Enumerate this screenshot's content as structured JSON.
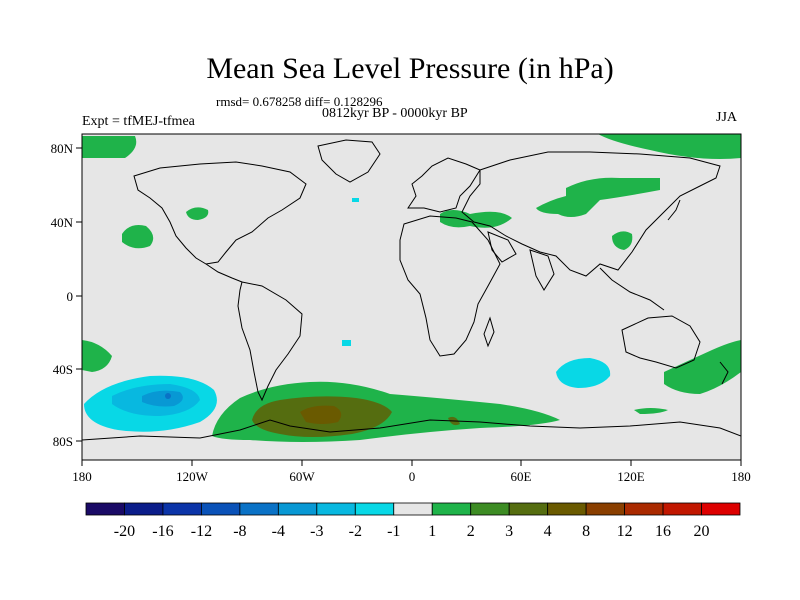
{
  "map": {
    "title": "Mean Sea Level Pressure (in hPa)",
    "stats": "rmsd= 0.678258 diff= 0.128296",
    "period": "0812kyr BP - 0000kyr BP",
    "experiment": "Expt = tfMEJ-tfmea",
    "season": "JJA",
    "lat_ticks": [
      "80N",
      "40N",
      "0",
      "40S",
      "80S"
    ],
    "lon_ticks": [
      "180",
      "120W",
      "60W",
      "0",
      "60E",
      "120E",
      "180"
    ]
  },
  "colorbar": {
    "labels": [
      "-20",
      "-16",
      "-12",
      "-8",
      "-4",
      "-3",
      "-2",
      "-1",
      "1",
      "2",
      "3",
      "4",
      "8",
      "12",
      "16",
      "20"
    ],
    "colors": [
      "#1a0a66",
      "#0b1d8a",
      "#0b34a8",
      "#0a52b8",
      "#0a72c6",
      "#0898d4",
      "#08b8e0",
      "#08d8e6",
      "#e6e6e6",
      "#1fb34a",
      "#3d8c24",
      "#556d10",
      "#6a5a00",
      "#8a3f00",
      "#aa2a00",
      "#c11700",
      "#dd0000"
    ]
  },
  "colors": {
    "background": "#e6e6e6",
    "coast": "#000000"
  }
}
